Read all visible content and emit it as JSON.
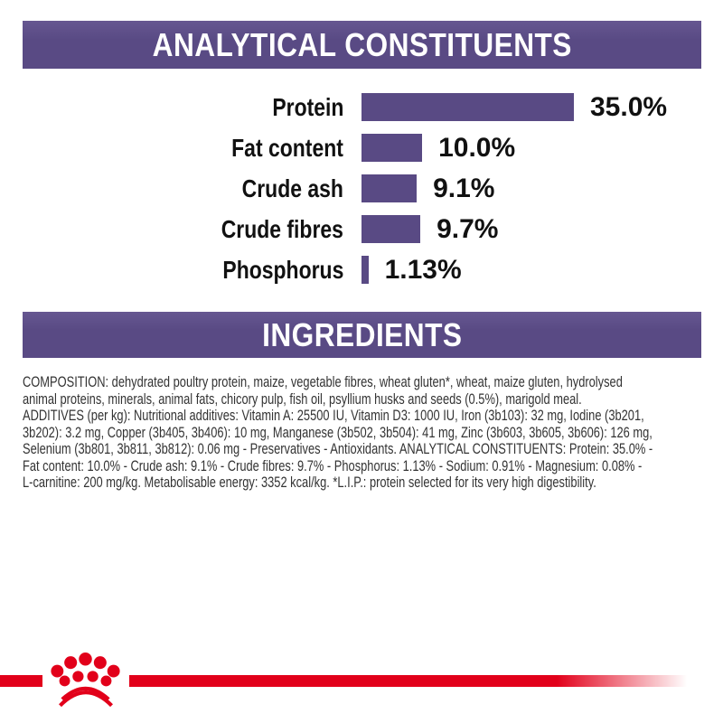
{
  "colors": {
    "purple": "#594a84",
    "red": "#e2001a",
    "heading_text": "#ffffff",
    "chart_text": "#111111",
    "body_text": "#333333",
    "background": "#ffffff"
  },
  "header_analytical": {
    "label": "ANALYTICAL CONSTITUENTS"
  },
  "header_ingredients": {
    "label": "INGREDIENTS"
  },
  "chart_data": {
    "type": "bar",
    "orientation": "horizontal",
    "title": "ANALYTICAL CONSTITUENTS",
    "categories": [
      "Protein",
      "Fat content",
      "Crude ash",
      "Crude fibres",
      "Phosphorus"
    ],
    "values": [
      35.0,
      10.0,
      9.1,
      9.7,
      1.13
    ],
    "value_labels": [
      "35.0%",
      "10.0%",
      "9.1%",
      "9.7%",
      "1.13%"
    ],
    "unit": "%",
    "xlim": [
      0,
      35
    ],
    "bar_color": "#594a84",
    "grid": false,
    "legend": false,
    "value_label_position": "right-of-bar",
    "category_label_position": "left-of-bar"
  },
  "ingredients": {
    "lines": [
      "COMPOSITION: dehydrated poultry protein, maize, vegetable fibres, wheat gluten*, wheat, maize gluten, hydrolysed",
      "animal proteins, minerals, animal fats, chicory pulp, fish oil, psyllium husks and seeds (0.5%), marigold meal.",
      "ADDITIVES (per kg): Nutritional additives: Vitamin A: 25500 IU, Vitamin D3: 1000 IU, Iron (3b103): 32 mg, Iodine (3b201,",
      "3b202): 3.2 mg, Copper (3b405, 3b406): 10 mg, Manganese (3b502, 3b504): 41 mg, Zinc (3b603, 3b605, 3b606): 126 mg,",
      "Selenium (3b801, 3b811, 3b812): 0.06 mg - Preservatives - Antioxidants. ANALYTICAL CONSTITUENTS: Protein: 35.0% -",
      "Fat content: 10.0% - Crude ash: 9.1% - Crude fibres: 9.7% - Phosphorus: 1.13% - Sodium: 0.91% - Magnesium: 0.08% -",
      "L-carnitine: 200 mg/kg. Metabolisable energy: 3352 kcal/kg. *L.I.P.: protein selected for its very high digestibility."
    ]
  },
  "footer": {
    "logo": "royal-canin-crown-logo",
    "line_color": "#e2001a"
  }
}
